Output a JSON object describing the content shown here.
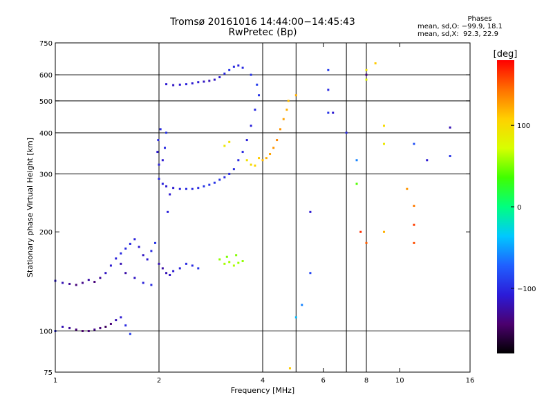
{
  "title": {
    "line1": "Tromsø 20161016 14:44:00−14:45:43",
    "line2": "RwPretec (Bp)"
  },
  "phase_stats": {
    "heading": "Phases",
    "o_label": "mean, sd,O:",
    "o_values": "−99.9, 18.1",
    "x_label": "mean, sd,X:",
    "x_values": " 92.3, 22.9"
  },
  "colorbar": {
    "unit": "[deg]",
    "ticks": [
      {
        "value": 100,
        "label": "100"
      },
      {
        "value": 0,
        "label": "0"
      },
      {
        "value": -100,
        "label": "−100"
      }
    ],
    "range": [
      -180,
      180
    ],
    "stops": [
      "#000000",
      "#4b006e",
      "#2b1bd8",
      "#2060ff",
      "#00c8ff",
      "#00ff80",
      "#40ff00",
      "#d8ff00",
      "#ffd000",
      "#ff7000",
      "#ff0000"
    ]
  },
  "chart_data": {
    "type": "scatter",
    "xscale": "log",
    "yscale": "log",
    "xlabel": "Frequency [MHz]",
    "ylabel": "Stationary phase Virtual Height [km]",
    "xlim": [
      1,
      16
    ],
    "ylim": [
      75,
      750
    ],
    "xticks": [
      1,
      2,
      4,
      6,
      8,
      10,
      16
    ],
    "xtick_labels": [
      "1",
      "2",
      "4",
      "6",
      "8",
      "10",
      "16"
    ],
    "yticks": [
      75,
      100,
      200,
      300,
      400,
      500,
      600,
      750
    ],
    "ytick_labels": [
      "75",
      "100",
      "200",
      "300",
      "400",
      "500",
      "600",
      "750"
    ],
    "xgrid": [
      2,
      4,
      5,
      7,
      8
    ],
    "ygrid": [
      100,
      300,
      400,
      500,
      600
    ],
    "grid": true,
    "point_color": "phase [deg]",
    "series": [
      {
        "values": [
          [
            1.0,
            100,
            -100
          ],
          [
            1.05,
            103,
            -120
          ],
          [
            1.1,
            102,
            -130
          ],
          [
            1.15,
            101,
            -140
          ],
          [
            1.2,
            100,
            -145
          ],
          [
            1.25,
            100,
            -140
          ],
          [
            1.3,
            101,
            -135
          ],
          [
            1.35,
            102,
            -140
          ],
          [
            1.4,
            103,
            -150
          ],
          [
            1.45,
            105,
            -140
          ],
          [
            1.5,
            108,
            -120
          ],
          [
            1.55,
            110,
            -110
          ],
          [
            1.6,
            104,
            -100
          ],
          [
            1.65,
            98,
            -90
          ],
          [
            1.0,
            142,
            -110
          ],
          [
            1.05,
            140,
            -120
          ],
          [
            1.1,
            139,
            -130
          ],
          [
            1.15,
            138,
            -140
          ],
          [
            1.2,
            140,
            -135
          ],
          [
            1.25,
            143,
            -125
          ],
          [
            1.3,
            141,
            -140
          ],
          [
            1.35,
            145,
            -130
          ],
          [
            1.4,
            150,
            -115
          ],
          [
            1.45,
            158,
            -110
          ],
          [
            1.5,
            166,
            -105
          ],
          [
            1.55,
            172,
            -100
          ],
          [
            1.6,
            178,
            -100
          ],
          [
            1.65,
            184,
            -100
          ],
          [
            1.7,
            190,
            -105
          ],
          [
            1.75,
            180,
            -110
          ],
          [
            1.8,
            170,
            -115
          ],
          [
            1.85,
            165,
            -110
          ],
          [
            1.9,
            175,
            -100
          ],
          [
            1.95,
            185,
            -95
          ],
          [
            2.0,
            160,
            -120
          ],
          [
            2.05,
            155,
            -125
          ],
          [
            2.1,
            150,
            -120
          ],
          [
            2.15,
            148,
            -115
          ],
          [
            2.2,
            152,
            -110
          ],
          [
            2.3,
            155,
            -105
          ],
          [
            2.4,
            160,
            -100
          ],
          [
            2.5,
            158,
            -100
          ],
          [
            2.6,
            155,
            -95
          ],
          [
            1.55,
            160,
            -120
          ],
          [
            1.6,
            150,
            -125
          ],
          [
            1.7,
            145,
            -115
          ],
          [
            1.8,
            140,
            -105
          ],
          [
            1.9,
            138,
            -100
          ],
          [
            2.0,
            290,
            -100
          ],
          [
            2.05,
            280,
            -105
          ],
          [
            2.1,
            275,
            -110
          ],
          [
            2.2,
            272,
            -110
          ],
          [
            2.3,
            270,
            -105
          ],
          [
            2.4,
            270,
            -100
          ],
          [
            2.5,
            270,
            -100
          ],
          [
            2.6,
            272,
            -100
          ],
          [
            2.7,
            275,
            -95
          ],
          [
            2.8,
            278,
            -95
          ],
          [
            2.9,
            282,
            -95
          ],
          [
            3.0,
            288,
            -95
          ],
          [
            3.1,
            293,
            -100
          ],
          [
            3.2,
            300,
            -100
          ],
          [
            3.3,
            310,
            -100
          ],
          [
            3.4,
            330,
            -100
          ],
          [
            3.5,
            350,
            -100
          ],
          [
            3.6,
            380,
            -105
          ],
          [
            3.7,
            420,
            -105
          ],
          [
            3.8,
            470,
            -100
          ],
          [
            3.9,
            520,
            -95
          ],
          [
            3.85,
            560,
            -90
          ],
          [
            3.7,
            600,
            -95
          ],
          [
            3.5,
            630,
            -100
          ],
          [
            3.4,
            640,
            -105
          ],
          [
            3.3,
            635,
            -100
          ],
          [
            3.2,
            620,
            -95
          ],
          [
            3.1,
            605,
            -100
          ],
          [
            3.0,
            590,
            -110
          ],
          [
            2.9,
            580,
            -115
          ],
          [
            2.8,
            575,
            -120
          ],
          [
            2.7,
            572,
            -115
          ],
          [
            2.6,
            570,
            -110
          ],
          [
            2.5,
            565,
            -110
          ],
          [
            2.4,
            562,
            -105
          ],
          [
            2.3,
            560,
            -110
          ],
          [
            2.2,
            558,
            -115
          ],
          [
            2.1,
            562,
            -110
          ],
          [
            2.0,
            320,
            -105
          ],
          [
            1.98,
            350,
            -110
          ],
          [
            1.99,
            380,
            -100
          ],
          [
            2.02,
            410,
            -100
          ],
          [
            2.05,
            330,
            -110
          ],
          [
            2.08,
            360,
            -100
          ],
          [
            2.1,
            400,
            -95
          ],
          [
            2.12,
            230,
            -105
          ],
          [
            2.15,
            260,
            -110
          ],
          [
            3.9,
            335,
            110
          ],
          [
            4.0,
            330,
            115
          ],
          [
            4.1,
            335,
            120
          ],
          [
            4.2,
            345,
            125
          ],
          [
            4.3,
            360,
            130
          ],
          [
            4.4,
            380,
            135
          ],
          [
            4.5,
            410,
            130
          ],
          [
            4.6,
            440,
            125
          ],
          [
            4.7,
            470,
            120
          ],
          [
            4.75,
            500,
            115
          ],
          [
            3.6,
            330,
            95
          ],
          [
            3.7,
            320,
            100
          ],
          [
            3.8,
            318,
            105
          ],
          [
            3.1,
            365,
            90
          ],
          [
            3.2,
            375,
            95
          ],
          [
            3.0,
            165,
            55
          ],
          [
            3.1,
            160,
            60
          ],
          [
            3.2,
            162,
            58
          ],
          [
            3.3,
            158,
            62
          ],
          [
            3.4,
            161,
            57
          ],
          [
            3.5,
            163,
            55
          ],
          [
            3.15,
            168,
            50
          ],
          [
            3.35,
            170,
            52
          ],
          [
            6.2,
            620,
            -90
          ],
          [
            6.2,
            540,
            -100
          ],
          [
            6.2,
            460,
            -95
          ],
          [
            6.4,
            460,
            -110
          ],
          [
            7.0,
            400,
            -100
          ],
          [
            7.5,
            330,
            -60
          ],
          [
            8.0,
            580,
            80
          ],
          [
            8.0,
            620,
            95
          ],
          [
            8.0,
            600,
            -140
          ],
          [
            8.5,
            650,
            110
          ],
          [
            9.0,
            420,
            100
          ],
          [
            9.0,
            370,
            90
          ],
          [
            11.0,
            370,
            -80
          ],
          [
            12.0,
            330,
            -110
          ],
          [
            14.0,
            415,
            -120
          ],
          [
            14.0,
            340,
            -95
          ],
          [
            7.5,
            280,
            40
          ],
          [
            8.0,
            185,
            150
          ],
          [
            7.7,
            200,
            165
          ],
          [
            9.0,
            200,
            120
          ],
          [
            10.5,
            270,
            130
          ],
          [
            11.0,
            240,
            140
          ],
          [
            11.0,
            210,
            160
          ],
          [
            11.0,
            185,
            155
          ],
          [
            5.0,
            520,
            120
          ],
          [
            5.5,
            230,
            -110
          ],
          [
            5.5,
            150,
            -85
          ],
          [
            5.2,
            120,
            -60
          ],
          [
            5.0,
            110,
            -40
          ],
          [
            4.8,
            77,
            110
          ]
        ]
      }
    ]
  }
}
